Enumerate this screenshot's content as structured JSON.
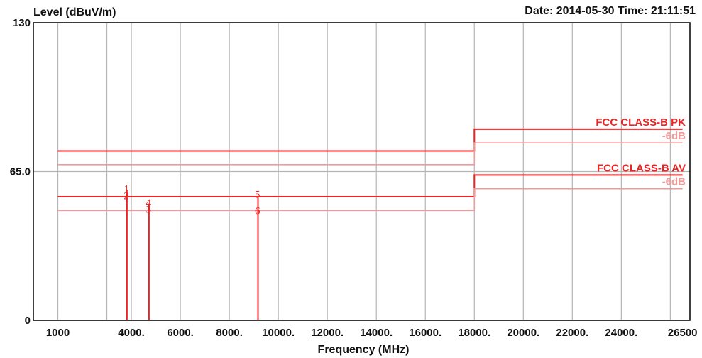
{
  "chart_data": {
    "type": "line",
    "title": "",
    "ylabel": "Level (dBuV/m)",
    "xlabel": "Frequency (MHz)",
    "header_right": "Date: 2014-05-30  Time: 21:11:51",
    "xlim": [
      1000,
      26500
    ],
    "ylim": [
      0,
      130
    ],
    "x_ticks": [
      1000,
      4000,
      6000,
      8000,
      10000,
      12000,
      14000,
      16000,
      18000,
      20000,
      22000,
      24000,
      26500
    ],
    "x_tick_labels": [
      "1000",
      "4000.",
      "6000.",
      "8000.",
      "10000.",
      "12000.",
      "14000.",
      "16000.",
      "18000.",
      "20000.",
      "22000.",
      "24000.",
      "26500"
    ],
    "y_ticks": [
      0,
      65,
      130
    ],
    "y_tick_labels": [
      "0",
      "65.0",
      "130"
    ],
    "grid_x": [
      1000,
      3000,
      4000,
      6000,
      8000,
      10000,
      12000,
      14000,
      16000,
      18000,
      20000,
      22000,
      24000,
      26000
    ],
    "grid_y": [
      0,
      65,
      130
    ],
    "colors": {
      "limit": "#ee2222",
      "limit_minus6": "#f29a9a",
      "grid": "#b5b5b5",
      "axis": "#000000"
    },
    "limit_lines": [
      {
        "label": "FCC CLASS-B PK",
        "role": "limit",
        "x": [
          1000,
          18000,
          18000,
          26500
        ],
        "y": [
          74,
          74,
          83.5,
          83.5
        ]
      },
      {
        "label": "-6dB",
        "role": "limit_minus6",
        "x": [
          1000,
          18000,
          18000,
          26500
        ],
        "y": [
          68,
          68,
          77.5,
          77.5
        ]
      },
      {
        "label": "FCC CLASS-B AV",
        "role": "limit",
        "x": [
          1000,
          18000,
          18000,
          26500
        ],
        "y": [
          54,
          54,
          63.5,
          63.5
        ]
      },
      {
        "label": "-6dB",
        "role": "limit_minus6",
        "x": [
          1000,
          18000,
          18000,
          26500
        ],
        "y": [
          48,
          48,
          57.5,
          57.5
        ]
      }
    ],
    "markers": [
      {
        "label": "1",
        "x": 3800,
        "y": 57.5
      },
      {
        "label": "2",
        "x": 3800,
        "y": 54.5
      },
      {
        "label": "3",
        "x": 4700,
        "y": 48.5
      },
      {
        "label": "4",
        "x": 4700,
        "y": 51.5
      },
      {
        "label": "5",
        "x": 9150,
        "y": 55
      },
      {
        "label": "6",
        "x": 9150,
        "y": 48
      }
    ],
    "signal_lines": [
      {
        "x": 3820,
        "y": 57
      },
      {
        "x": 4720,
        "y": 51
      },
      {
        "x": 9170,
        "y": 54
      }
    ]
  }
}
